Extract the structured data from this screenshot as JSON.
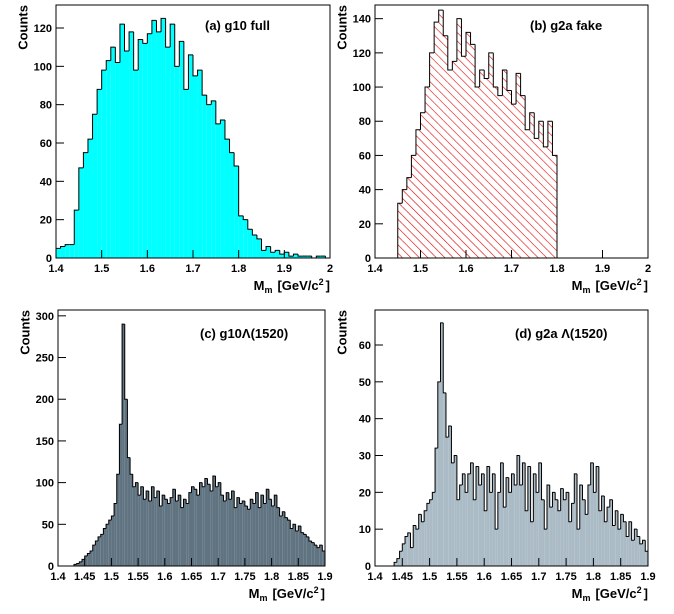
{
  "chart_data": [
    {
      "type": "histogram",
      "title": "(a) g10 full",
      "ylabel": "Counts",
      "xlabel": [
        "M",
        "m",
        "[GeV/c",
        "2",
        "]"
      ],
      "color": "#00ffff",
      "hatch": false,
      "xlim": [
        1.4,
        2.0
      ],
      "ylim": [
        0,
        132
      ],
      "xticks": [
        1.4,
        1.5,
        1.6,
        1.7,
        1.8,
        1.9,
        2
      ],
      "yticks": [
        0,
        20,
        40,
        60,
        80,
        100,
        120
      ],
      "bins": [
        1.4,
        1.41,
        1.42,
        1.43,
        1.44,
        1.45,
        1.46,
        1.47,
        1.48,
        1.49,
        1.5,
        1.51,
        1.52,
        1.53,
        1.54,
        1.55,
        1.56,
        1.57,
        1.58,
        1.59,
        1.6,
        1.61,
        1.62,
        1.63,
        1.64,
        1.65,
        1.66,
        1.67,
        1.68,
        1.69,
        1.7,
        1.71,
        1.72,
        1.73,
        1.74,
        1.75,
        1.76,
        1.77,
        1.78,
        1.79,
        1.8,
        1.81,
        1.82,
        1.83,
        1.84,
        1.85,
        1.86,
        1.87,
        1.88,
        1.89,
        1.9,
        1.91,
        1.92,
        1.93,
        1.94,
        1.95,
        1.96,
        1.97,
        1.98,
        1.99,
        2.0
      ],
      "values": [
        5,
        6,
        7,
        7,
        25,
        47,
        55,
        62,
        75,
        88,
        98,
        103,
        110,
        102,
        122,
        108,
        118,
        98,
        114,
        112,
        117,
        124,
        118,
        125,
        110,
        122,
        100,
        113,
        88,
        106,
        95,
        98,
        85,
        80,
        82,
        70,
        72,
        62,
        55,
        48,
        22,
        20,
        15,
        12,
        10,
        4,
        6,
        3,
        4,
        2,
        3,
        1,
        2,
        1,
        1,
        1,
        0,
        1,
        1,
        0
      ]
    },
    {
      "type": "histogram",
      "title": "(b) g2a fake",
      "ylabel": "Counts",
      "xlabel": [
        "M",
        "m",
        "[GeV/c",
        "2",
        "]"
      ],
      "color": "#ff0000",
      "hatch": true,
      "xlim": [
        1.4,
        2.0
      ],
      "ylim": [
        0,
        148
      ],
      "xticks": [
        1.4,
        1.5,
        1.6,
        1.7,
        1.8,
        1.9,
        2
      ],
      "yticks": [
        0,
        20,
        40,
        60,
        80,
        100,
        120,
        140
      ],
      "bins": [
        1.45,
        1.46,
        1.47,
        1.48,
        1.49,
        1.5,
        1.51,
        1.52,
        1.53,
        1.54,
        1.55,
        1.56,
        1.57,
        1.58,
        1.59,
        1.6,
        1.61,
        1.62,
        1.63,
        1.64,
        1.65,
        1.66,
        1.67,
        1.68,
        1.69,
        1.7,
        1.71,
        1.72,
        1.73,
        1.74,
        1.75,
        1.76,
        1.77,
        1.78,
        1.79,
        1.8
      ],
      "values": [
        32,
        40,
        47,
        60,
        75,
        85,
        100,
        120,
        138,
        145,
        130,
        110,
        115,
        140,
        118,
        132,
        125,
        100,
        110,
        105,
        120,
        100,
        95,
        110,
        98,
        90,
        108,
        95,
        75,
        85,
        70,
        80,
        65,
        80,
        60
      ]
    },
    {
      "type": "histogram",
      "title": "(c) g10Λ(1520)",
      "ylabel": "Counts",
      "xlabel": [
        "M",
        "m",
        "[GeV/c",
        "2",
        "]"
      ],
      "color": "#5f7380",
      "hatch": false,
      "xlim": [
        1.4,
        1.9
      ],
      "ylim": [
        0,
        307
      ],
      "xticks": [
        1.4,
        1.45,
        1.5,
        1.55,
        1.6,
        1.65,
        1.7,
        1.75,
        1.8,
        1.85,
        1.9
      ],
      "yticks": [
        0,
        50,
        100,
        150,
        200,
        250,
        300
      ],
      "bins": [
        1.43,
        1.435,
        1.44,
        1.445,
        1.45,
        1.455,
        1.46,
        1.465,
        1.47,
        1.475,
        1.48,
        1.485,
        1.49,
        1.495,
        1.5,
        1.505,
        1.51,
        1.515,
        1.52,
        1.525,
        1.53,
        1.535,
        1.54,
        1.545,
        1.55,
        1.555,
        1.56,
        1.565,
        1.57,
        1.575,
        1.58,
        1.585,
        1.59,
        1.595,
        1.6,
        1.605,
        1.61,
        1.615,
        1.62,
        1.625,
        1.63,
        1.635,
        1.64,
        1.645,
        1.65,
        1.655,
        1.66,
        1.665,
        1.67,
        1.675,
        1.68,
        1.685,
        1.69,
        1.695,
        1.7,
        1.705,
        1.71,
        1.715,
        1.72,
        1.725,
        1.73,
        1.735,
        1.74,
        1.745,
        1.75,
        1.755,
        1.76,
        1.765,
        1.77,
        1.775,
        1.78,
        1.785,
        1.79,
        1.795,
        1.8,
        1.805,
        1.81,
        1.815,
        1.82,
        1.825,
        1.83,
        1.835,
        1.84,
        1.845,
        1.85,
        1.855,
        1.86,
        1.865,
        1.87,
        1.875,
        1.88,
        1.885,
        1.89,
        1.895,
        1.9
      ],
      "values": [
        2,
        3,
        5,
        8,
        12,
        15,
        18,
        25,
        30,
        35,
        38,
        45,
        50,
        55,
        60,
        75,
        110,
        170,
        290,
        200,
        130,
        110,
        95,
        100,
        85,
        95,
        80,
        90,
        78,
        95,
        82,
        90,
        72,
        85,
        80,
        75,
        82,
        92,
        78,
        85,
        70,
        80,
        75,
        88,
        95,
        92,
        85,
        100,
        95,
        105,
        98,
        90,
        108,
        95,
        100,
        85,
        78,
        88,
        80,
        90,
        70,
        82,
        75,
        78,
        72,
        68,
        80,
        75,
        88,
        70,
        85,
        75,
        92,
        80,
        72,
        85,
        70,
        60,
        65,
        58,
        55,
        45,
        50,
        42,
        48,
        40,
        38,
        35,
        30,
        28,
        25,
        22,
        25,
        18
      ]
    },
    {
      "type": "histogram",
      "title": "(d) g2a Λ(1520)",
      "ylabel": "Counts",
      "xlabel": [
        "M",
        "m",
        "[GeV/c",
        "2",
        "]"
      ],
      "color": "#aabbc6",
      "hatch": false,
      "xlim": [
        1.4,
        1.9
      ],
      "ylim": [
        0,
        69.5
      ],
      "xticks": [
        1.4,
        1.45,
        1.5,
        1.55,
        1.6,
        1.65,
        1.7,
        1.75,
        1.8,
        1.85,
        1.9
      ],
      "yticks": [
        0,
        10,
        20,
        30,
        40,
        50,
        60
      ],
      "bins": [
        1.43,
        1.435,
        1.44,
        1.445,
        1.45,
        1.455,
        1.46,
        1.465,
        1.47,
        1.475,
        1.48,
        1.485,
        1.49,
        1.495,
        1.5,
        1.505,
        1.51,
        1.515,
        1.52,
        1.525,
        1.53,
        1.535,
        1.54,
        1.545,
        1.55,
        1.555,
        1.56,
        1.565,
        1.57,
        1.575,
        1.58,
        1.585,
        1.59,
        1.595,
        1.6,
        1.605,
        1.61,
        1.615,
        1.62,
        1.625,
        1.63,
        1.635,
        1.64,
        1.645,
        1.65,
        1.655,
        1.66,
        1.665,
        1.67,
        1.675,
        1.68,
        1.685,
        1.69,
        1.695,
        1.7,
        1.705,
        1.71,
        1.715,
        1.72,
        1.725,
        1.73,
        1.735,
        1.74,
        1.745,
        1.75,
        1.755,
        1.76,
        1.765,
        1.77,
        1.775,
        1.78,
        1.785,
        1.79,
        1.795,
        1.8,
        1.805,
        1.81,
        1.815,
        1.82,
        1.825,
        1.83,
        1.835,
        1.84,
        1.845,
        1.85,
        1.855,
        1.86,
        1.865,
        1.87,
        1.875,
        1.88,
        1.885,
        1.89,
        1.895,
        1.9
      ],
      "values": [
        0,
        1,
        2,
        4,
        6,
        8,
        9,
        5,
        11,
        10,
        14,
        12,
        15,
        17,
        18,
        20,
        32,
        50,
        66,
        47,
        35,
        38,
        28,
        30,
        18,
        22,
        25,
        20,
        25,
        28,
        18,
        27,
        22,
        25,
        15,
        27,
        20,
        25,
        10,
        20,
        28,
        16,
        24,
        20,
        25,
        22,
        30,
        22,
        28,
        15,
        27,
        12,
        25,
        20,
        28,
        18,
        10,
        22,
        16,
        20,
        18,
        15,
        21,
        18,
        20,
        12,
        17,
        25,
        10,
        22,
        18,
        14,
        22,
        28,
        20,
        27,
        15,
        19,
        12,
        16,
        18,
        11,
        15,
        10,
        14,
        12,
        8,
        12,
        7,
        10,
        8,
        6,
        7,
        4
      ]
    }
  ]
}
